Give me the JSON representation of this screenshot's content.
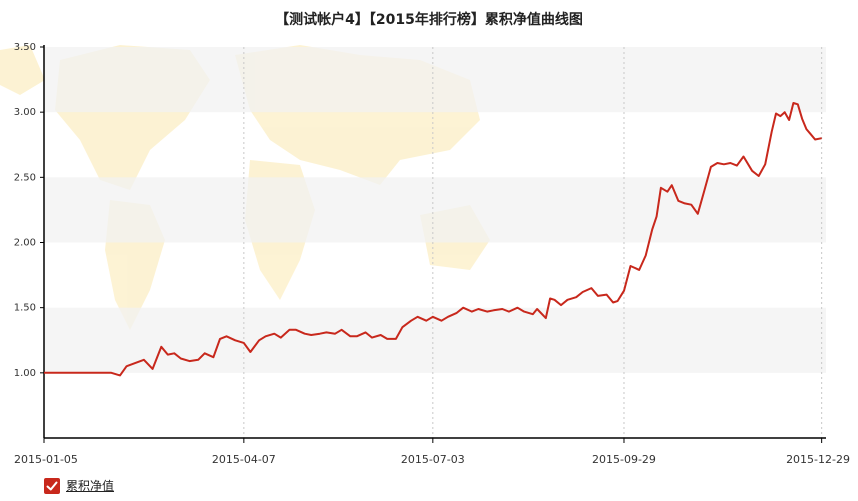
{
  "chart_data": {
    "type": "line",
    "title": "【测试帐户4】【2015年排行榜】累积净值曲线图",
    "xlabel": "",
    "ylabel": "",
    "x_ticks": [
      "2015-01-05",
      "2015-04-07",
      "2015-07-03",
      "2015-09-29",
      "2015-12-29"
    ],
    "y_ticks": [
      "1.00",
      "1.50",
      "2.00",
      "2.50",
      "3.00",
      "3.50"
    ],
    "ylim": [
      0.5,
      3.5
    ],
    "xlim": [
      "2015-01-05",
      "2015-12-31"
    ],
    "grid": "horizontal bands, dotted vertical lines",
    "legend_position": "bottom-left",
    "series": [
      {
        "name": "累积净值",
        "color": "#c8281c",
        "points": [
          [
            "2015-01-05",
            1.0
          ],
          [
            "2015-01-20",
            1.0
          ],
          [
            "2015-02-05",
            1.0
          ],
          [
            "2015-02-09",
            0.98
          ],
          [
            "2015-02-12",
            1.05
          ],
          [
            "2015-02-20",
            1.1
          ],
          [
            "2015-02-24",
            1.03
          ],
          [
            "2015-02-28",
            1.2
          ],
          [
            "2015-03-03",
            1.14
          ],
          [
            "2015-03-06",
            1.15
          ],
          [
            "2015-03-09",
            1.11
          ],
          [
            "2015-03-13",
            1.09
          ],
          [
            "2015-03-17",
            1.1
          ],
          [
            "2015-03-20",
            1.15
          ],
          [
            "2015-03-24",
            1.12
          ],
          [
            "2015-03-27",
            1.26
          ],
          [
            "2015-03-30",
            1.28
          ],
          [
            "2015-04-03",
            1.25
          ],
          [
            "2015-04-07",
            1.23
          ],
          [
            "2015-04-10",
            1.16
          ],
          [
            "2015-04-14",
            1.25
          ],
          [
            "2015-04-17",
            1.28
          ],
          [
            "2015-04-21",
            1.3
          ],
          [
            "2015-04-24",
            1.27
          ],
          [
            "2015-04-28",
            1.33
          ],
          [
            "2015-05-01",
            1.33
          ],
          [
            "2015-05-05",
            1.3
          ],
          [
            "2015-05-08",
            1.29
          ],
          [
            "2015-05-12",
            1.3
          ],
          [
            "2015-05-15",
            1.31
          ],
          [
            "2015-05-19",
            1.3
          ],
          [
            "2015-05-22",
            1.33
          ],
          [
            "2015-05-26",
            1.28
          ],
          [
            "2015-05-29",
            1.28
          ],
          [
            "2015-06-02",
            1.31
          ],
          [
            "2015-06-05",
            1.27
          ],
          [
            "2015-06-09",
            1.29
          ],
          [
            "2015-06-12",
            1.26
          ],
          [
            "2015-06-16",
            1.26
          ],
          [
            "2015-06-19",
            1.35
          ],
          [
            "2015-06-23",
            1.4
          ],
          [
            "2015-06-26",
            1.43
          ],
          [
            "2015-06-30",
            1.4
          ],
          [
            "2015-07-03",
            1.43
          ],
          [
            "2015-07-07",
            1.4
          ],
          [
            "2015-07-10",
            1.43
          ],
          [
            "2015-07-14",
            1.46
          ],
          [
            "2015-07-17",
            1.5
          ],
          [
            "2015-07-21",
            1.47
          ],
          [
            "2015-07-24",
            1.49
          ],
          [
            "2015-07-28",
            1.47
          ],
          [
            "2015-07-31",
            1.48
          ],
          [
            "2015-08-04",
            1.49
          ],
          [
            "2015-08-07",
            1.47
          ],
          [
            "2015-08-11",
            1.5
          ],
          [
            "2015-08-14",
            1.47
          ],
          [
            "2015-08-18",
            1.45
          ],
          [
            "2015-08-20",
            1.49
          ],
          [
            "2015-08-24",
            1.42
          ],
          [
            "2015-08-26",
            1.57
          ],
          [
            "2015-08-28",
            1.56
          ],
          [
            "2015-08-31",
            1.52
          ],
          [
            "2015-09-03",
            1.56
          ],
          [
            "2015-09-07",
            1.58
          ],
          [
            "2015-09-10",
            1.62
          ],
          [
            "2015-09-14",
            1.65
          ],
          [
            "2015-09-17",
            1.59
          ],
          [
            "2015-09-21",
            1.6
          ],
          [
            "2015-09-24",
            1.54
          ],
          [
            "2015-09-26",
            1.55
          ],
          [
            "2015-09-29",
            1.63
          ],
          [
            "2015-10-02",
            1.82
          ],
          [
            "2015-10-06",
            1.79
          ],
          [
            "2015-10-09",
            1.9
          ],
          [
            "2015-10-12",
            2.1
          ],
          [
            "2015-10-14",
            2.2
          ],
          [
            "2015-10-16",
            2.42
          ],
          [
            "2015-10-19",
            2.39
          ],
          [
            "2015-10-21",
            2.44
          ],
          [
            "2015-10-24",
            2.32
          ],
          [
            "2015-10-27",
            2.3
          ],
          [
            "2015-10-30",
            2.29
          ],
          [
            "2015-11-02",
            2.22
          ],
          [
            "2015-11-05",
            2.4
          ],
          [
            "2015-11-08",
            2.58
          ],
          [
            "2015-11-11",
            2.61
          ],
          [
            "2015-11-14",
            2.6
          ],
          [
            "2015-11-17",
            2.61
          ],
          [
            "2015-11-20",
            2.59
          ],
          [
            "2015-11-23",
            2.66
          ],
          [
            "2015-11-27",
            2.55
          ],
          [
            "2015-11-30",
            2.51
          ],
          [
            "2015-12-03",
            2.6
          ],
          [
            "2015-12-06",
            2.85
          ],
          [
            "2015-12-08",
            2.99
          ],
          [
            "2015-12-10",
            2.97
          ],
          [
            "2015-12-12",
            3.0
          ],
          [
            "2015-12-14",
            2.94
          ],
          [
            "2015-12-16",
            3.07
          ],
          [
            "2015-12-18",
            3.06
          ],
          [
            "2015-12-20",
            2.95
          ],
          [
            "2015-12-22",
            2.87
          ],
          [
            "2015-12-24",
            2.83
          ],
          [
            "2015-12-26",
            2.79
          ],
          [
            "2015-12-29",
            2.8
          ]
        ]
      }
    ]
  },
  "legend": {
    "label": "累积净值",
    "color": "#c8281c"
  }
}
